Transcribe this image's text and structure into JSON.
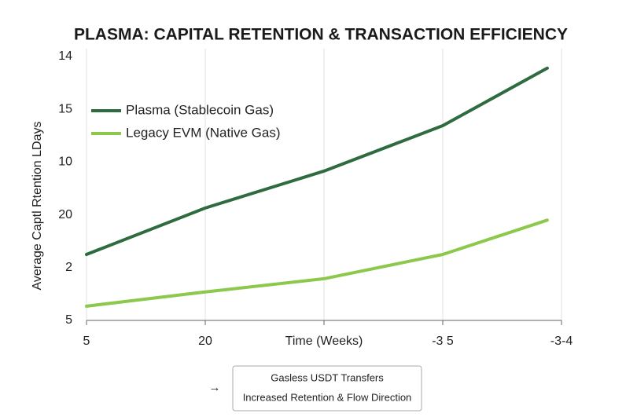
{
  "chart_data": {
    "type": "line",
    "title": "PLASMA: CAPITAL RETENTION & TRANSACTION EFFICIENCY",
    "xlabel": "Time (Weeks)",
    "ylabel": "Average Captl Rtention LDays",
    "x": [
      0,
      1,
      2,
      3,
      3.88
    ],
    "xlim": [
      0,
      4
    ],
    "xticks": [
      {
        "value": 0,
        "label": "5"
      },
      {
        "value": 1,
        "label": "20"
      },
      {
        "value": 2,
        "label": null
      },
      {
        "value": 3,
        "label": "-3 5"
      },
      {
        "value": 4,
        "label": "-3-4"
      }
    ],
    "ylim": [
      0,
      5
    ],
    "yticks": [
      {
        "value": 0,
        "label": "5"
      },
      {
        "value": 1,
        "label": "2"
      },
      {
        "value": 2,
        "label": "20"
      },
      {
        "value": 3,
        "label": "10"
      },
      {
        "value": 4,
        "label": "15"
      },
      {
        "value": 5,
        "label": "14"
      }
    ],
    "grid": "x",
    "legend": "upper left",
    "series": [
      {
        "name": "Plasma (Stablecoin Gas)",
        "color": "#2e6b3e",
        "values": [
          1.25,
          2.13,
          2.83,
          3.69,
          4.78
        ]
      },
      {
        "name": "Legacy EVM (Native Gas)",
        "color": "#8cc84b",
        "values": [
          0.27,
          0.54,
          0.79,
          1.25,
          1.9
        ]
      }
    ],
    "annotation": [
      "Gasless USDT Transfers",
      "Increased Retention & Flow Direction"
    ]
  }
}
